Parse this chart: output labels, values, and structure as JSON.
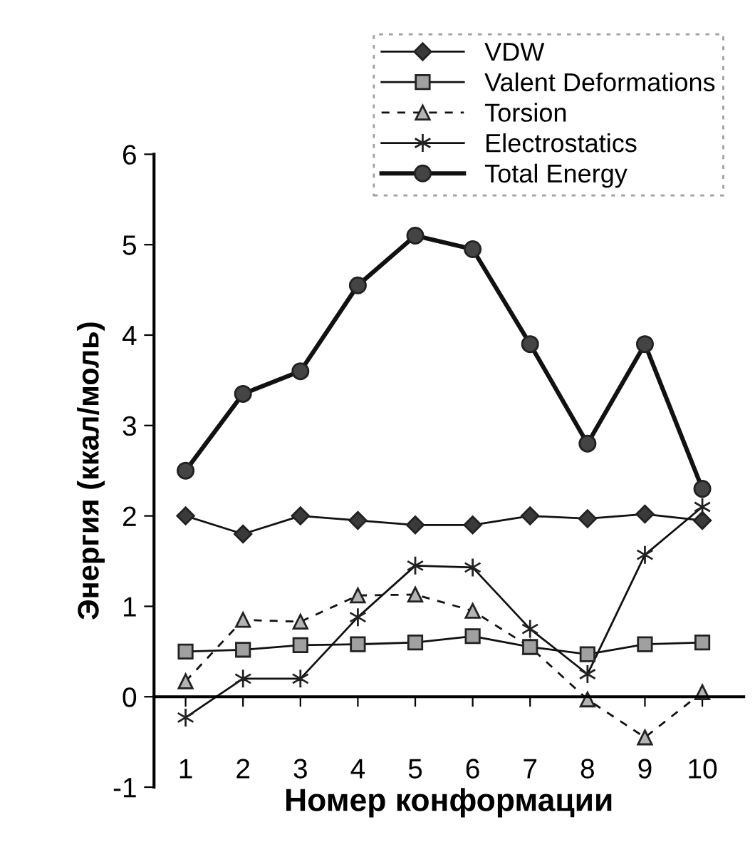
{
  "chart_data": {
    "type": "line",
    "xlabel": "Номер конформации",
    "ylabel": "Энергия (ккал/моль)",
    "categories": [
      "1",
      "2",
      "3",
      "4",
      "5",
      "6",
      "7",
      "8",
      "9",
      "10"
    ],
    "series": [
      {
        "name": "VDW",
        "color": "#3a3a3a",
        "marker": "diamond",
        "line_style": "solid",
        "values": [
          2.0,
          1.8,
          2.0,
          1.95,
          1.9,
          1.9,
          2.0,
          1.97,
          2.02,
          1.95
        ]
      },
      {
        "name": "Valent Deformations",
        "color": "#a0a0a0",
        "marker": "square",
        "line_style": "solid",
        "values": [
          0.5,
          0.52,
          0.57,
          0.58,
          0.6,
          0.67,
          0.55,
          0.47,
          0.58,
          0.6
        ]
      },
      {
        "name": "Torsion",
        "color": "#b4b4b4",
        "marker": "triangle",
        "line_style": "dashed",
        "values": [
          0.17,
          0.85,
          0.83,
          1.12,
          1.13,
          0.95,
          0.55,
          -0.03,
          -0.45,
          0.05
        ]
      },
      {
        "name": "Electrostatics",
        "color": "#1e1e1e",
        "marker": "cross",
        "line_style": "solid",
        "values": [
          -0.23,
          0.2,
          0.2,
          0.88,
          1.45,
          1.43,
          0.75,
          0.25,
          1.57,
          2.1
        ]
      },
      {
        "name": "Total Energy",
        "color": "#444444",
        "marker": "circle",
        "line_style": "solid",
        "values": [
          2.5,
          3.35,
          3.6,
          4.55,
          5.1,
          4.95,
          3.9,
          2.8,
          3.9,
          2.3
        ]
      }
    ],
    "ylim": [
      -1,
      6
    ],
    "yticks": [
      -1,
      0,
      1,
      2,
      3,
      4,
      5,
      6
    ],
    "grid": false,
    "legend": "top right"
  }
}
